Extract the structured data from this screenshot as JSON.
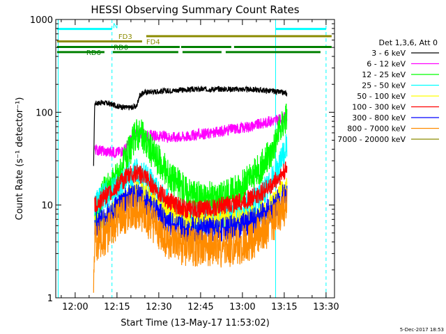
{
  "chart_data": {
    "type": "line",
    "title": "HESSI Observing Summary Count Rates",
    "xlabel": "Start Time (13-May-17 11:53:02)",
    "ylabel": "Count Rate (s⁻¹ detector⁻¹)",
    "x_ticks": [
      "12:00",
      "12:15",
      "12:30",
      "12:45",
      "13:00",
      "13:15",
      "13:30"
    ],
    "x_tick_minutes": [
      720,
      735,
      750,
      765,
      780,
      795,
      810
    ],
    "xlim_minutes": [
      713.03,
      813.03
    ],
    "y_scale": "log",
    "y_ticks": [
      "1",
      "10",
      "100",
      "1000"
    ],
    "y_tick_values": [
      1,
      10,
      100,
      1000
    ],
    "ylim": [
      1,
      1000
    ],
    "legend_position": "right",
    "legend_header": "Det 1,3,6, Att 0",
    "series": [
      {
        "name": "3 - 6 keV",
        "color": "#000000",
        "x": [
          726.6,
          727,
          730,
          733,
          736,
          739,
          742,
          743,
          745,
          750,
          755,
          760,
          765,
          770,
          775,
          780,
          785,
          790,
          793,
          796
        ],
        "y": [
          25,
          125,
          127,
          122,
          115,
          112,
          115,
          150,
          165,
          168,
          172,
          175,
          177,
          178,
          178,
          177,
          175,
          170,
          165,
          160
        ]
      },
      {
        "name": "6 - 12 keV",
        "color": "#ff00ff",
        "x": [
          727,
          730,
          735,
          738,
          740,
          742,
          745,
          750,
          755,
          760,
          765,
          770,
          775,
          780,
          785,
          790,
          793,
          796
        ],
        "y": [
          40,
          38,
          37,
          40,
          52,
          60,
          57,
          55,
          54,
          55,
          58,
          60,
          65,
          68,
          73,
          80,
          83,
          90
        ]
      },
      {
        "name": "12 - 25 keV",
        "color": "#00ff00",
        "x": [
          727,
          730,
          733,
          736,
          739,
          742,
          744,
          747,
          750,
          753,
          756,
          760,
          765,
          770,
          775,
          780,
          785,
          790,
          793,
          796
        ],
        "y": [
          7,
          13,
          17,
          22,
          35,
          60,
          55,
          40,
          30,
          22,
          18,
          14,
          12,
          12,
          13,
          16,
          22,
          35,
          60,
          95
        ]
      },
      {
        "name": "25 - 50 keV",
        "color": "#00ffff",
        "x": [
          727,
          730,
          733,
          736,
          739,
          742,
          745,
          748,
          751,
          755,
          760,
          765,
          770,
          775,
          780,
          785,
          790,
          793,
          796
        ],
        "y": [
          10,
          12,
          14,
          16,
          20,
          22,
          20,
          16,
          12,
          9,
          7.5,
          7,
          7,
          7.5,
          9,
          11,
          17,
          25,
          45
        ]
      },
      {
        "name": "50 - 100 keV",
        "color": "#ffff00",
        "x": [
          727,
          730,
          733,
          736,
          739,
          742,
          745,
          748,
          752,
          756,
          760,
          765,
          770,
          775,
          780,
          785,
          790,
          793,
          796
        ],
        "y": [
          6,
          7,
          8,
          10,
          13,
          14,
          13,
          11,
          9,
          8,
          7,
          7,
          7,
          7,
          7,
          8,
          10,
          13,
          17
        ]
      },
      {
        "name": "100 - 300 keV",
        "color": "#ff0000",
        "x": [
          727,
          730,
          733,
          736,
          739,
          742,
          745,
          748,
          752,
          756,
          760,
          765,
          770,
          775,
          780,
          785,
          790,
          793,
          796
        ],
        "y": [
          10,
          12,
          14,
          17,
          21,
          22,
          20,
          16,
          12,
          10,
          9,
          9,
          9.5,
          10,
          11,
          12.5,
          16,
          20,
          25
        ]
      },
      {
        "name": "300 - 800 keV",
        "color": "#0000ff",
        "x": [
          727,
          730,
          733,
          736,
          739,
          742,
          745,
          748,
          752,
          756,
          760,
          765,
          770,
          775,
          780,
          785,
          790,
          793,
          796
        ],
        "y": [
          6,
          7,
          8,
          10,
          12,
          12.5,
          11,
          9,
          7,
          6,
          5.5,
          5.5,
          5.5,
          5.5,
          6,
          7,
          9,
          11,
          14
        ]
      },
      {
        "name": "800 - 7000 keV",
        "color": "#ff8c00",
        "x": [
          726.6,
          727,
          730,
          733,
          736,
          739,
          742,
          745,
          748,
          752,
          756,
          760,
          765,
          770,
          775,
          780,
          785,
          790,
          793,
          796
        ],
        "y": [
          1.1,
          4,
          4.5,
          5.5,
          7,
          8.5,
          9,
          8,
          6,
          4.5,
          3.8,
          3.5,
          3.5,
          3.5,
          3.5,
          3.8,
          4.5,
          6,
          8,
          10
        ]
      },
      {
        "name": "7000 - 20000 keV",
        "color": "#8b8b00",
        "x": [],
        "y": []
      }
    ],
    "attenuator_lines_minutes": [
      733.2,
      791.9
    ],
    "night_lines_minutes": [
      713.9,
      791.9
    ],
    "dashed_lines_minutes": [
      733.2,
      810.0
    ],
    "flag_bars": [
      {
        "label": "N",
        "color": "#00ffff",
        "y_value": 790,
        "segments": [
          [
            713.5,
            733.2
          ],
          [
            791.9,
            810
          ]
        ],
        "label_minute": 733.5
      },
      {
        "label": "FD3",
        "color": "#8b8b00",
        "y_value": 660,
        "segments": [
          [
            745.5,
            812
          ]
        ],
        "label_minute": 735.5
      },
      {
        "label": "FD4",
        "color": "#8b8b00",
        "y_value": 580,
        "segments": [
          [
            713.5,
            744
          ]
        ],
        "label_minute": 745.5
      },
      {
        "label": "RD0",
        "color": "#008000",
        "y_value": 505,
        "segments": [
          [
            713.5,
            757.5
          ],
          [
            758,
            776
          ],
          [
            777,
            812
          ]
        ],
        "label_minute": 733.8
      },
      {
        "label": "RD6",
        "color": "#008000",
        "y_value": 445,
        "segments": [
          [
            713.5,
            730.5
          ],
          [
            733.5,
            757
          ],
          [
            758.5,
            772.5
          ],
          [
            774,
            808
          ]
        ],
        "label_minute": 724.0
      }
    ],
    "footer_date": "5-Dec-2017 18:53"
  }
}
